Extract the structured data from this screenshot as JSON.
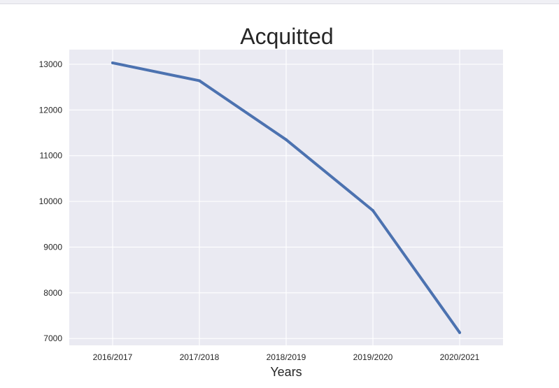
{
  "chart_data": {
    "type": "line",
    "title": "Acquitted",
    "xlabel": "Years",
    "ylabel": "",
    "categories": [
      "2016/2017",
      "2017/2018",
      "2018/2019",
      "2019/2020",
      "2020/2021"
    ],
    "series": [
      {
        "values": [
          13030,
          12640,
          11350,
          9800,
          7130
        ]
      }
    ],
    "ylim": [
      6850,
      13320
    ],
    "yticks": [
      7000,
      8000,
      9000,
      10000,
      11000,
      12000,
      13000
    ],
    "grid": true,
    "line_color": "#4c72b0",
    "background_color": "#eaeaf2"
  }
}
